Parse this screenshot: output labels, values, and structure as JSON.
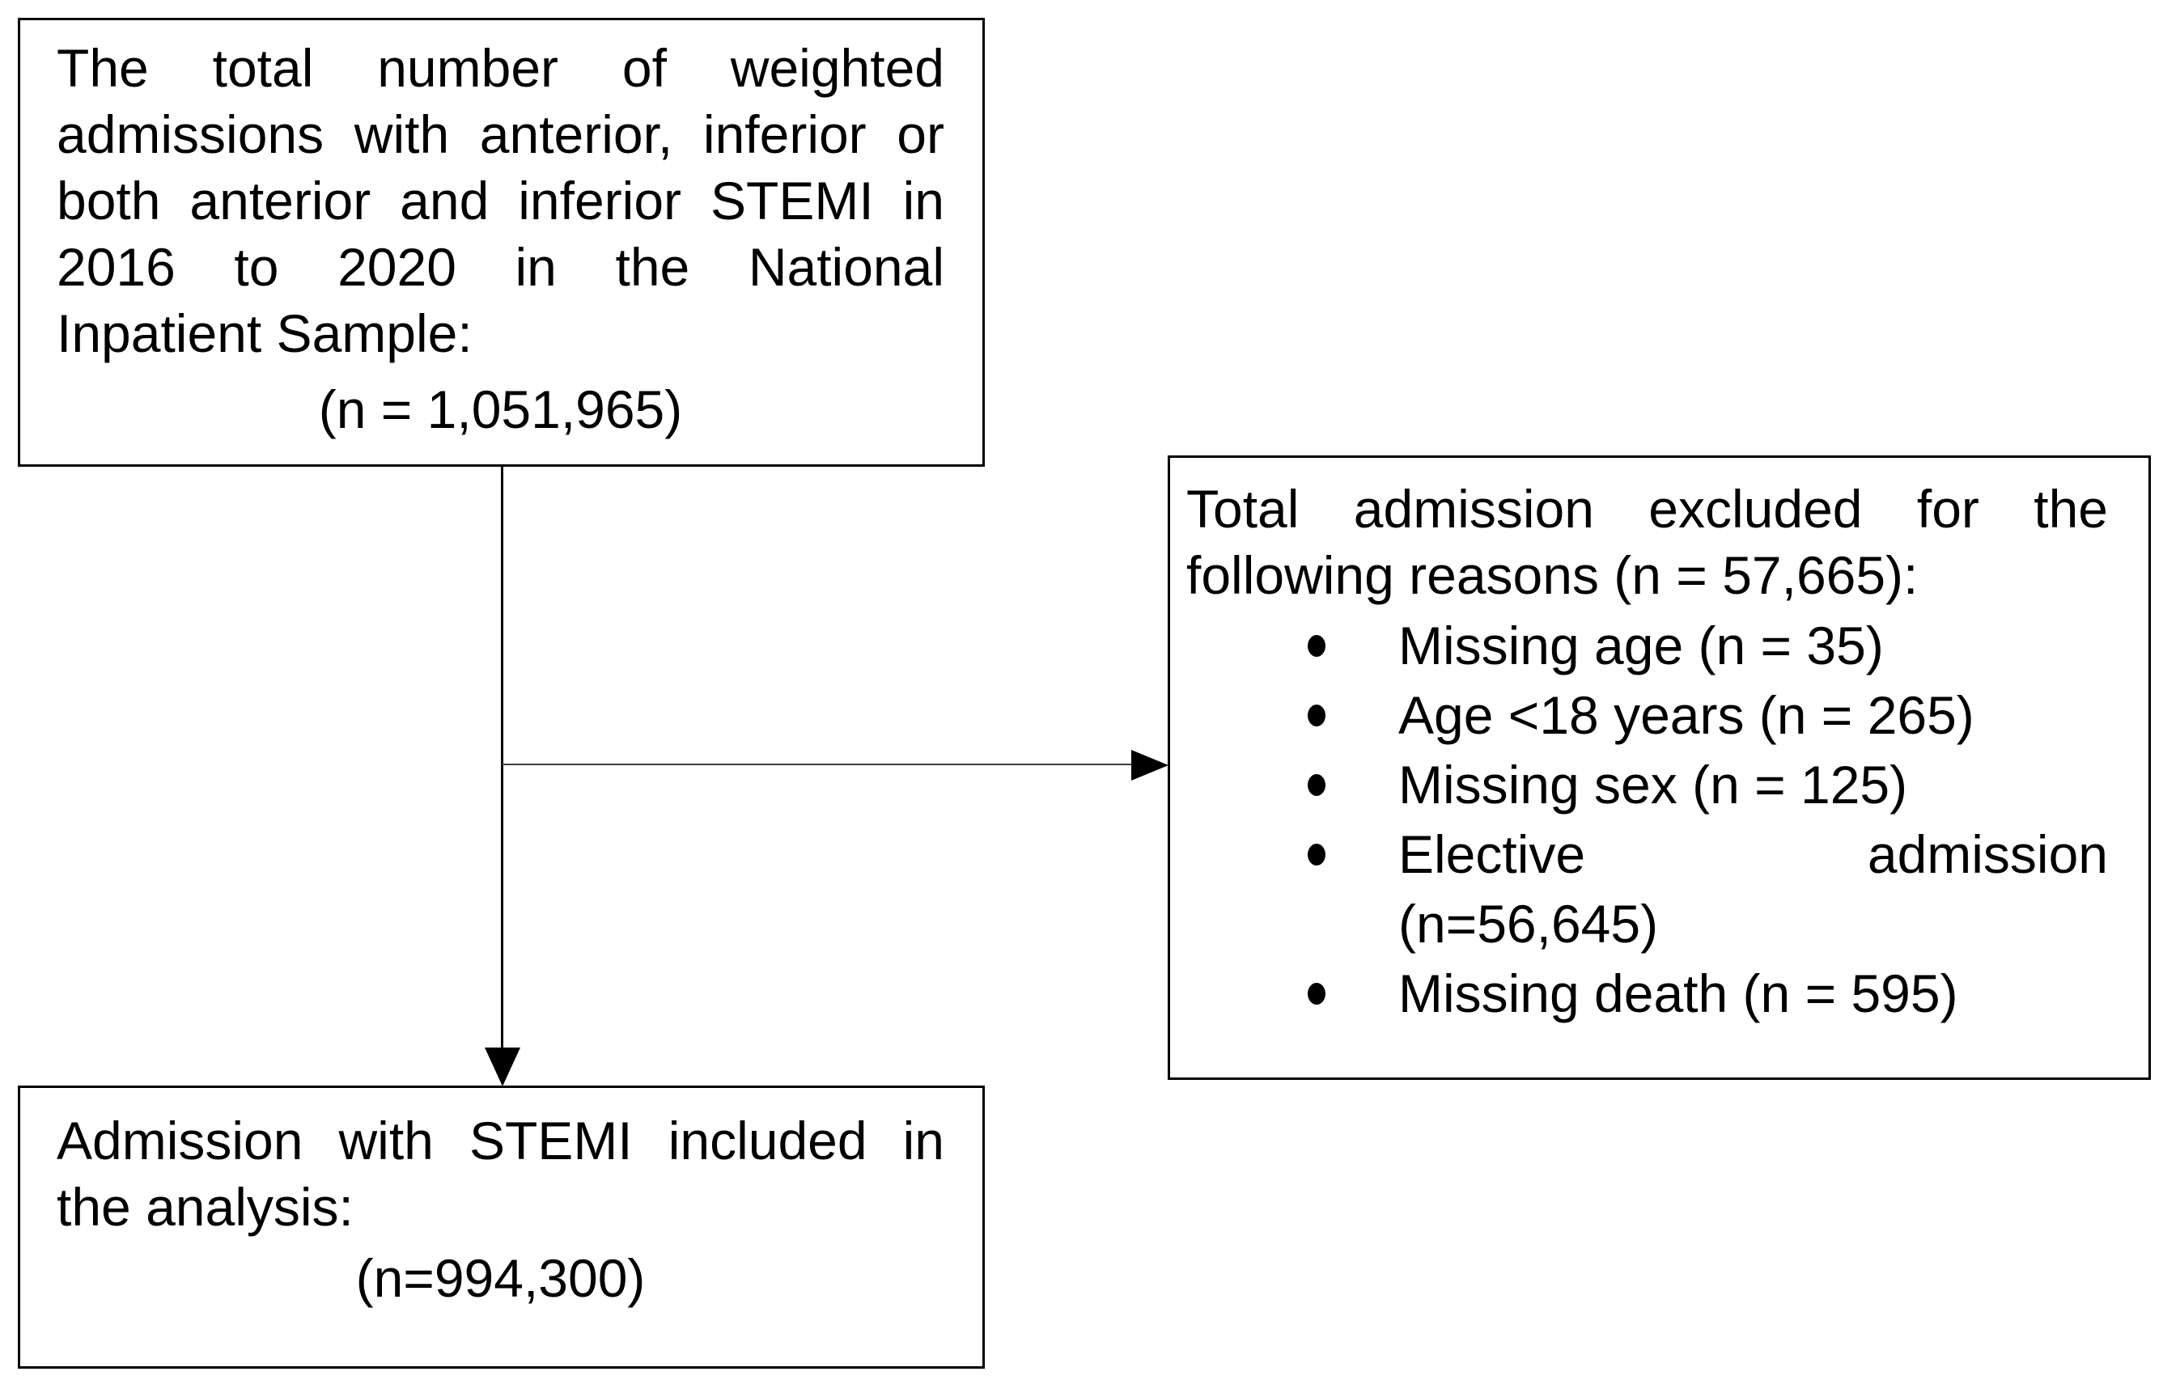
{
  "diagram": {
    "background": "#ffffff",
    "border_color": "#000000",
    "text_color": "#000000",
    "connector_color": "#3d3d3d"
  },
  "top_box": {
    "lines": [
      "The total number of weighted",
      "admissions with anterior, inferior or",
      "both anterior and inferior STEMI in",
      "2016 to 2020 in the National",
      "Inpatient Sample:",
      "(n = 1,051,965)"
    ]
  },
  "excluded_box": {
    "intro_lines": [
      "Total admission excluded for the",
      "following reasons (n = 57,665):"
    ],
    "bullets": [
      {
        "lines": [
          "Missing age (n = 35)"
        ]
      },
      {
        "lines": [
          "Age <18 years (n = 265)"
        ]
      },
      {
        "lines": [
          "Missing sex (n = 125)"
        ]
      },
      {
        "lines": [
          "Elective admission",
          "(n=56,645)"
        ]
      },
      {
        "lines": [
          "Missing death (n = 595)"
        ]
      }
    ]
  },
  "included_box": {
    "lines": [
      "Admission with STEMI included in",
      "the analysis:",
      "(n=994,300)"
    ]
  }
}
